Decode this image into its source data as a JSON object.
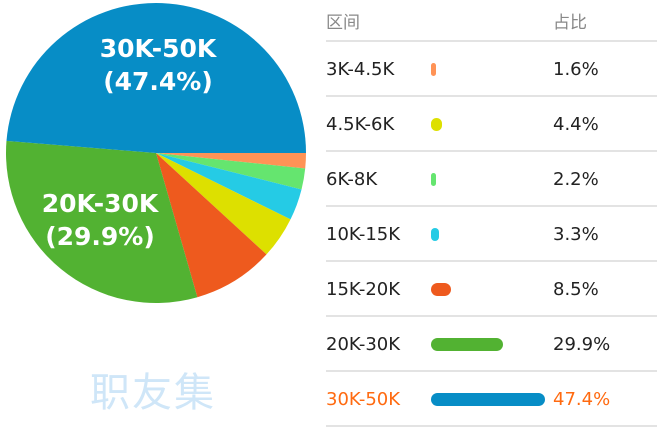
{
  "chart_data": {
    "type": "pie",
    "title": "",
    "columns": [
      "区间",
      "占比"
    ],
    "slices": [
      {
        "label": "3K-4.5K",
        "value": 1.6,
        "pct_label": "1.6%",
        "color": "#ff9356"
      },
      {
        "label": "4.5K-6K",
        "value": 4.4,
        "pct_label": "4.4%",
        "color": "#dde000"
      },
      {
        "label": "6K-8K",
        "value": 2.2,
        "pct_label": "2.2%",
        "color": "#65e56f"
      },
      {
        "label": "10K-15K",
        "value": 3.3,
        "pct_label": "3.3%",
        "color": "#25cbe5"
      },
      {
        "label": "15K-20K",
        "value": 8.5,
        "pct_label": "8.5%",
        "color": "#ee5a1e"
      },
      {
        "label": "20K-30K",
        "value": 29.9,
        "pct_label": "29.9%",
        "color": "#52b232"
      },
      {
        "label": "30K-50K",
        "value": 47.4,
        "pct_label": "47.4%",
        "color": "#078dc6"
      }
    ],
    "pie_order": [
      "3K-4.5K",
      "6K-8K",
      "10K-15K",
      "4.5K-6K",
      "15K-20K",
      "20K-30K",
      "30K-50K"
    ],
    "pie_labels": [
      {
        "label": "30K-50K",
        "value": "(47.4%)"
      },
      {
        "label": "20K-30K",
        "value": "(29.9%)"
      }
    ],
    "highlight": "30K-50K",
    "highlight_color": "#ff6a10"
  },
  "watermark": "职友集"
}
